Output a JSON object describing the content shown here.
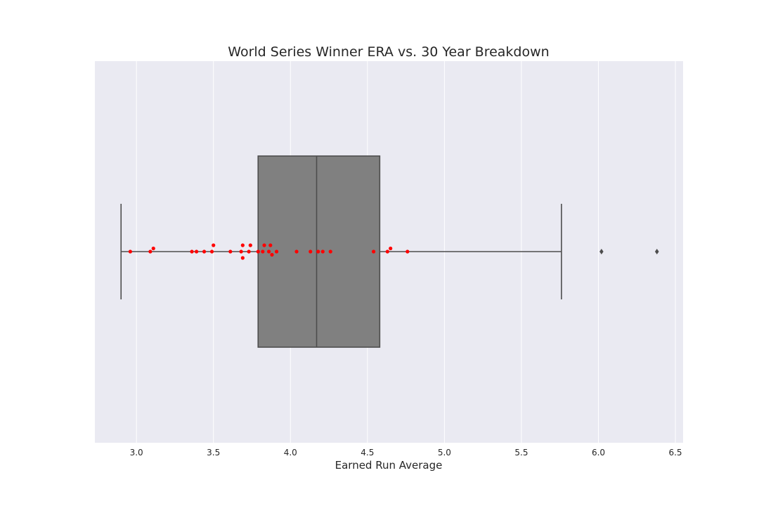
{
  "chart_data": {
    "type": "boxplot",
    "title": "World Series Winner ERA vs. 30 Year Breakdown",
    "xlabel": "Earned Run Average",
    "ylabel": "",
    "xlim": [
      2.73,
      6.55
    ],
    "xticks": [
      "3.0",
      "3.5",
      "4.0",
      "4.5",
      "5.0",
      "5.5",
      "6.0",
      "6.5"
    ],
    "grid": true,
    "colors": {
      "background": "#eaeaf2",
      "grid": "#ffffff",
      "box_fill": "#808080",
      "box_edge": "#4d4d4d",
      "points": "#ff0000"
    },
    "box": {
      "whisker_low": 2.9,
      "q1": 3.79,
      "median": 4.17,
      "q3": 4.58,
      "whisker_high": 5.76,
      "outliers": [
        6.02,
        6.38
      ]
    },
    "points": [
      2.96,
      3.09,
      3.11,
      3.36,
      3.39,
      3.44,
      3.49,
      3.5,
      3.61,
      3.68,
      3.69,
      3.69,
      3.73,
      3.74,
      3.79,
      3.82,
      3.83,
      3.86,
      3.87,
      3.88,
      3.91,
      4.04,
      4.13,
      4.18,
      4.21,
      4.26,
      4.54,
      4.63,
      4.65,
      4.76
    ]
  }
}
